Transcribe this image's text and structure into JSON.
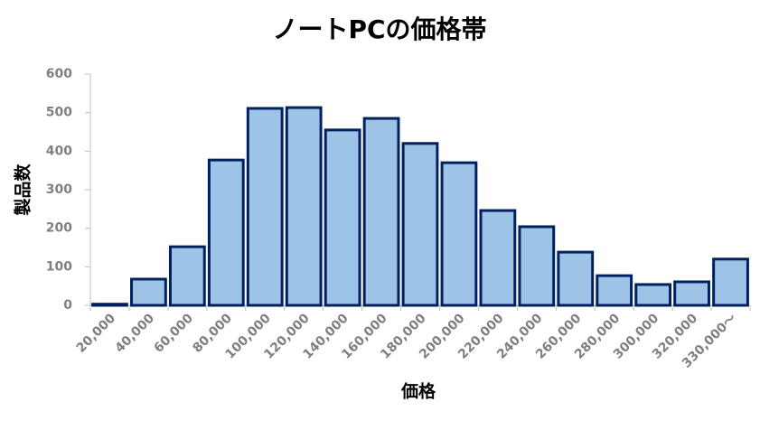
{
  "chart_data": {
    "type": "bar",
    "title": "ノートPCの価格帯",
    "x_label": "価格",
    "y_label": "製品数",
    "categories": [
      "20,000",
      "40,000",
      "60,000",
      "80,000",
      "100,000",
      "120,000",
      "140,000",
      "160,000",
      "180,000",
      "200,000",
      "220,000",
      "240,000",
      "260,000",
      "280,000",
      "300,000",
      "320,000",
      "330,000～"
    ],
    "values": [
      3,
      68,
      152,
      377,
      511,
      513,
      455,
      485,
      420,
      370,
      246,
      204,
      138,
      77,
      54,
      61,
      120
    ],
    "color": "#9dc3e6",
    "edge_color": "#002060",
    "ylim": [
      0,
      600
    ],
    "yticks": [
      0,
      100,
      200,
      300,
      400,
      500,
      600
    ],
    "grid": false
  }
}
